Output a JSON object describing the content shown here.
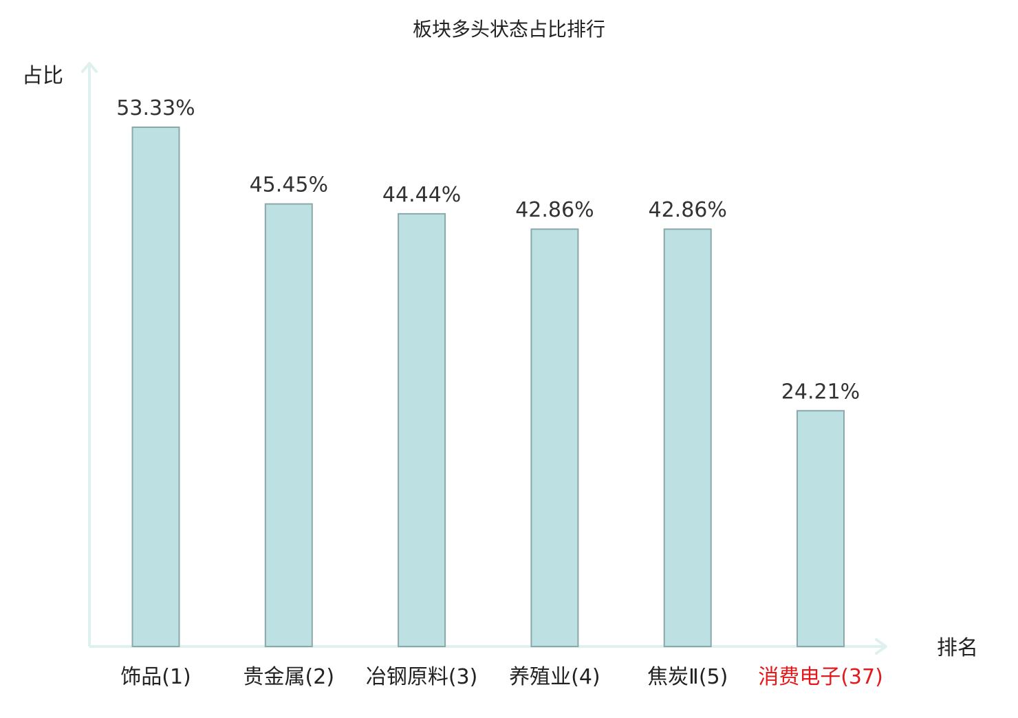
{
  "chart_data": {
    "type": "bar",
    "title": "板块多头状态占比排行",
    "xlabel": "排名",
    "ylabel": "占比",
    "categories": [
      {
        "name": "饰品",
        "rank": "(1)",
        "highlight": false
      },
      {
        "name": "贵金属",
        "rank": "(2)",
        "highlight": false
      },
      {
        "name": "冶钢原料",
        "rank": "(3)",
        "highlight": false
      },
      {
        "name": "养殖业",
        "rank": "(4)",
        "highlight": false
      },
      {
        "name": "焦炭Ⅱ",
        "rank": "(5)",
        "highlight": false
      },
      {
        "name": "消费电子",
        "rank": "(37)",
        "highlight": true
      }
    ],
    "values": [
      53.33,
      45.45,
      44.44,
      42.86,
      42.86,
      24.21
    ],
    "value_labels": [
      "53.33%",
      "45.45%",
      "44.44%",
      "42.86%",
      "42.86%",
      "24.21%"
    ],
    "ylim": [
      0,
      60
    ],
    "grid": false,
    "legend": "none"
  },
  "colors": {
    "bar_fill": "#bde1e3",
    "bar_stroke": "#8aa7a9",
    "axis": "#dff1ef",
    "text": "#222222",
    "value_text": "#333333",
    "highlight_text": "#e31a1c"
  }
}
